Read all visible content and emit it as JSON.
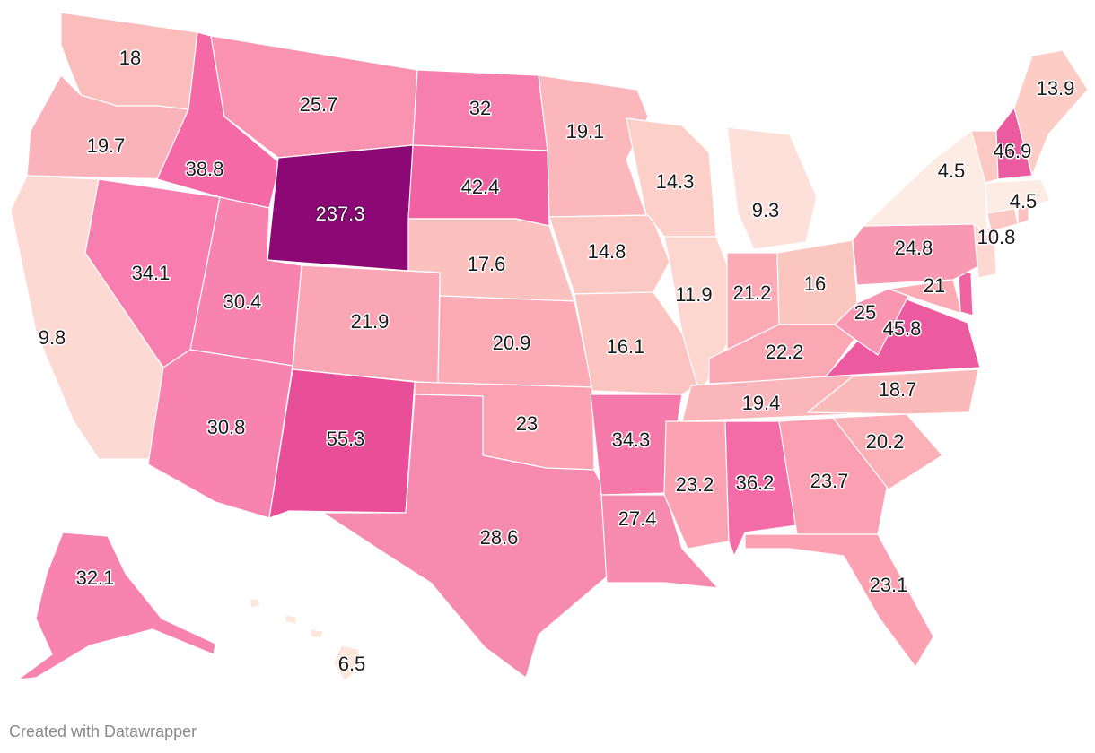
{
  "footer": {
    "credit": "Created with Datawrapper"
  },
  "legend": {
    "low_color": "#fdece8",
    "high_color": "#8c0874"
  },
  "states": [
    {
      "name": "Washington",
      "value": "18",
      "color": "#fbbcbc"
    },
    {
      "name": "Oregon",
      "value": "19.7",
      "color": "#fbb3bb"
    },
    {
      "name": "California",
      "value": "9.8",
      "color": "#fdd9d4"
    },
    {
      "name": "Nevada",
      "value": "34.1",
      "color": "#f77eae"
    },
    {
      "name": "Idaho",
      "value": "38.8",
      "color": "#f569a6"
    },
    {
      "name": "Montana",
      "value": "25.7",
      "color": "#f993b1"
    },
    {
      "name": "Wyoming",
      "value": "237.3",
      "color": "#8c0874"
    },
    {
      "name": "Utah",
      "value": "30.4",
      "color": "#f783ae"
    },
    {
      "name": "Arizona",
      "value": "30.8",
      "color": "#f783ae"
    },
    {
      "name": "Colorado",
      "value": "21.9",
      "color": "#fba6b4"
    },
    {
      "name": "New Mexico",
      "value": "55.3",
      "color": "#e94f98"
    },
    {
      "name": "North Dakota",
      "value": "32",
      "color": "#f77fad"
    },
    {
      "name": "South Dakota",
      "value": "42.4",
      "color": "#f062a2"
    },
    {
      "name": "Nebraska",
      "value": "17.6",
      "color": "#fbc1bf"
    },
    {
      "name": "Kansas",
      "value": "20.9",
      "color": "#fbaab6"
    },
    {
      "name": "Oklahoma",
      "value": "23",
      "color": "#fba2b3"
    },
    {
      "name": "Texas",
      "value": "28.6",
      "color": "#f78aaf"
    },
    {
      "name": "Minnesota",
      "value": "19.1",
      "color": "#fbb7bb"
    },
    {
      "name": "Iowa",
      "value": "14.8",
      "color": "#fcc8c3"
    },
    {
      "name": "Missouri",
      "value": "16.1",
      "color": "#fbc4c0"
    },
    {
      "name": "Arkansas",
      "value": "34.3",
      "color": "#f57aaa"
    },
    {
      "name": "Louisiana",
      "value": "27.4",
      "color": "#f78baf"
    },
    {
      "name": "Wisconsin",
      "value": "14.3",
      "color": "#fcd0c8"
    },
    {
      "name": "Illinois",
      "value": "11.9",
      "color": "#fdd6d0"
    },
    {
      "name": "Michigan",
      "value": "9.3",
      "color": "#fde0da"
    },
    {
      "name": "Indiana",
      "value": "21.2",
      "color": "#fbaab6"
    },
    {
      "name": "Ohio",
      "value": "16",
      "color": "#fcc6c0"
    },
    {
      "name": "Kentucky",
      "value": "22.2",
      "color": "#fba8b4"
    },
    {
      "name": "Tennessee",
      "value": "19.4",
      "color": "#fbb6bb"
    },
    {
      "name": "Mississippi",
      "value": "23.2",
      "color": "#fba2b3"
    },
    {
      "name": "Alabama",
      "value": "36.2",
      "color": "#f36ca8"
    },
    {
      "name": "Georgia",
      "value": "23.7",
      "color": "#fba0b2"
    },
    {
      "name": "Florida",
      "value": "23.1",
      "color": "#fba1b2"
    },
    {
      "name": "South Carolina",
      "value": "20.2",
      "color": "#fbb0b8"
    },
    {
      "name": "North Carolina",
      "value": "18.7",
      "color": "#fbbaba"
    },
    {
      "name": "Virginia",
      "value": "45.8",
      "color": "#ec5aa0"
    },
    {
      "name": "West Virginia",
      "value": "25",
      "color": "#f996b2"
    },
    {
      "name": "Maryland",
      "value": "21",
      "color": "#fbaab6"
    },
    {
      "name": "Delaware",
      "value": "",
      "color": "#f062a2"
    },
    {
      "name": "Pennsylvania",
      "value": "24.8",
      "color": "#f998b3"
    },
    {
      "name": "New Jersey",
      "value": "10.8",
      "color": "#fdd8d2"
    },
    {
      "name": "New York",
      "value": "4.5",
      "color": "#fdece3"
    },
    {
      "name": "Connecticut",
      "value": "",
      "color": "#fcc8c3"
    },
    {
      "name": "Rhode Island",
      "value": "",
      "color": "#fcc0be"
    },
    {
      "name": "Massachusetts",
      "value": "4.5",
      "color": "#fdece3"
    },
    {
      "name": "Vermont",
      "value": "",
      "color": "#fcc8c3"
    },
    {
      "name": "New Hampshire",
      "value": "46.9",
      "color": "#ec5aa0"
    },
    {
      "name": "Maine",
      "value": "13.9",
      "color": "#fcccc5"
    },
    {
      "name": "Alaska",
      "value": "32.1",
      "color": "#f783ae"
    },
    {
      "name": "Hawaii",
      "value": "6.5",
      "color": "#fde6da"
    }
  ]
}
